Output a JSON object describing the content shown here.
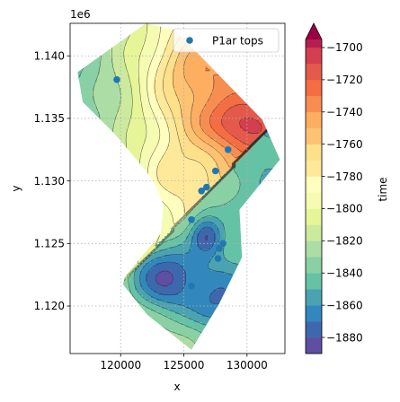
{
  "chart_data": {
    "type": "contour",
    "title": "",
    "xlabel": "x",
    "ylabel": "y",
    "x_offset_label": "",
    "y_offset_label": "1e6",
    "xlim": [
      116000,
      133000
    ],
    "ylim": [
      1116200,
      1142600
    ],
    "xticks": [
      120000,
      125000,
      130000
    ],
    "xtick_labels": [
      "120000",
      "125000",
      "130000"
    ],
    "yticks": [
      1120000,
      1125000,
      1130000,
      1135000,
      1140000
    ],
    "ytick_labels": [
      "1.120",
      "1.125",
      "1.130",
      "1.135",
      "1.140"
    ],
    "grid": true,
    "grid_style": "dotted",
    "legend": {
      "placement": "top-right",
      "entries": [
        "P1ar tops"
      ]
    },
    "colormap": "Spectral_r",
    "colorbar": {
      "label": "time",
      "range": [
        -1890,
        -1695
      ],
      "levels": [
        -1890,
        -1880,
        -1870,
        -1860,
        -1850,
        -1840,
        -1830,
        -1820,
        -1810,
        -1800,
        -1790,
        -1780,
        -1770,
        -1760,
        -1750,
        -1740,
        -1730,
        -1720,
        -1710,
        -1700
      ],
      "tick_values": [
        -1880,
        -1860,
        -1840,
        -1820,
        -1800,
        -1780,
        -1760,
        -1740,
        -1720,
        -1700
      ],
      "tick_labels": [
        "−1880",
        "−1860",
        "−1840",
        "−1820",
        "−1800",
        "−1780",
        "−1760",
        "−1740",
        "−1720",
        "−1700"
      ],
      "extend": "max",
      "colors": [
        "#5e4fa2",
        "#3e68ae",
        "#3288bd",
        "#4ba3b1",
        "#66c2a5",
        "#89d0a4",
        "#abdda4",
        "#cbea9d",
        "#e6f598",
        "#f6fbb2",
        "#fffebe",
        "#fee99a",
        "#fee08b",
        "#fdc272",
        "#fdae61",
        "#f88d52",
        "#f46d43",
        "#e45a4a",
        "#d53e4f",
        "#b3204f",
        "#9e0142"
      ]
    },
    "series": [
      {
        "name": "P1ar tops",
        "color": "#1f77b4",
        "points": [
          {
            "x": 119700,
            "y": 1138100
          },
          {
            "x": 128500,
            "y": 1132500
          },
          {
            "x": 127500,
            "y": 1130800
          },
          {
            "x": 126800,
            "y": 1129500
          },
          {
            "x": 126400,
            "y": 1129200
          },
          {
            "x": 125600,
            "y": 1126900
          },
          {
            "x": 128100,
            "y": 1125000
          },
          {
            "x": 127800,
            "y": 1124600
          },
          {
            "x": 127700,
            "y": 1123800
          },
          {
            "x": 125600,
            "y": 1121600
          }
        ]
      }
    ],
    "surface": {
      "outline": [
        [
          116600,
          1138700
        ],
        [
          122000,
          1142600
        ],
        [
          124200,
          1142100
        ],
        [
          126000,
          1140300
        ],
        [
          131200,
          1134900
        ],
        [
          132600,
          1131700
        ],
        [
          129400,
          1127700
        ],
        [
          129600,
          1123900
        ],
        [
          127800,
          1120200
        ],
        [
          125600,
          1116500
        ],
        [
          122100,
          1119300
        ],
        [
          120200,
          1121700
        ],
        [
          120300,
          1122300
        ],
        [
          123200,
          1125800
        ],
        [
          123400,
          1128100
        ],
        [
          122800,
          1129500
        ],
        [
          122100,
          1130700
        ],
        [
          119500,
          1133800
        ],
        [
          117000,
          1136300
        ]
      ],
      "fault": [
        [
          131700,
          1134200
        ],
        [
          124200,
          1126200
        ]
      ],
      "north_highs": [
        {
          "x": 129300,
          "y": 1134800,
          "value": -1700,
          "sx": 2600,
          "sy": 2200
        },
        {
          "x": 127100,
          "y": 1138600,
          "value": -1740,
          "sx": 2800,
          "sy": 2400
        },
        {
          "x": 125200,
          "y": 1131000,
          "value": -1770,
          "sx": 2100,
          "sy": 1800
        }
      ],
      "north_trend": {
        "x0": 116600,
        "x1": 131500,
        "v0": -1842,
        "v1": -1740
      },
      "south_lows": [
        {
          "x": 123700,
          "y": 1122200,
          "value": -1882,
          "sx": 2400,
          "sy": 2000
        },
        {
          "x": 127800,
          "y": 1120600,
          "value": -1872,
          "sx": 1800,
          "sy": 1700
        },
        {
          "x": 126800,
          "y": 1125500,
          "value": -1880,
          "sx": 900,
          "sy": 1200
        }
      ],
      "south_trend": {
        "x0": 120200,
        "x1": 131500,
        "v0": -1808,
        "v1": -1850
      }
    }
  }
}
